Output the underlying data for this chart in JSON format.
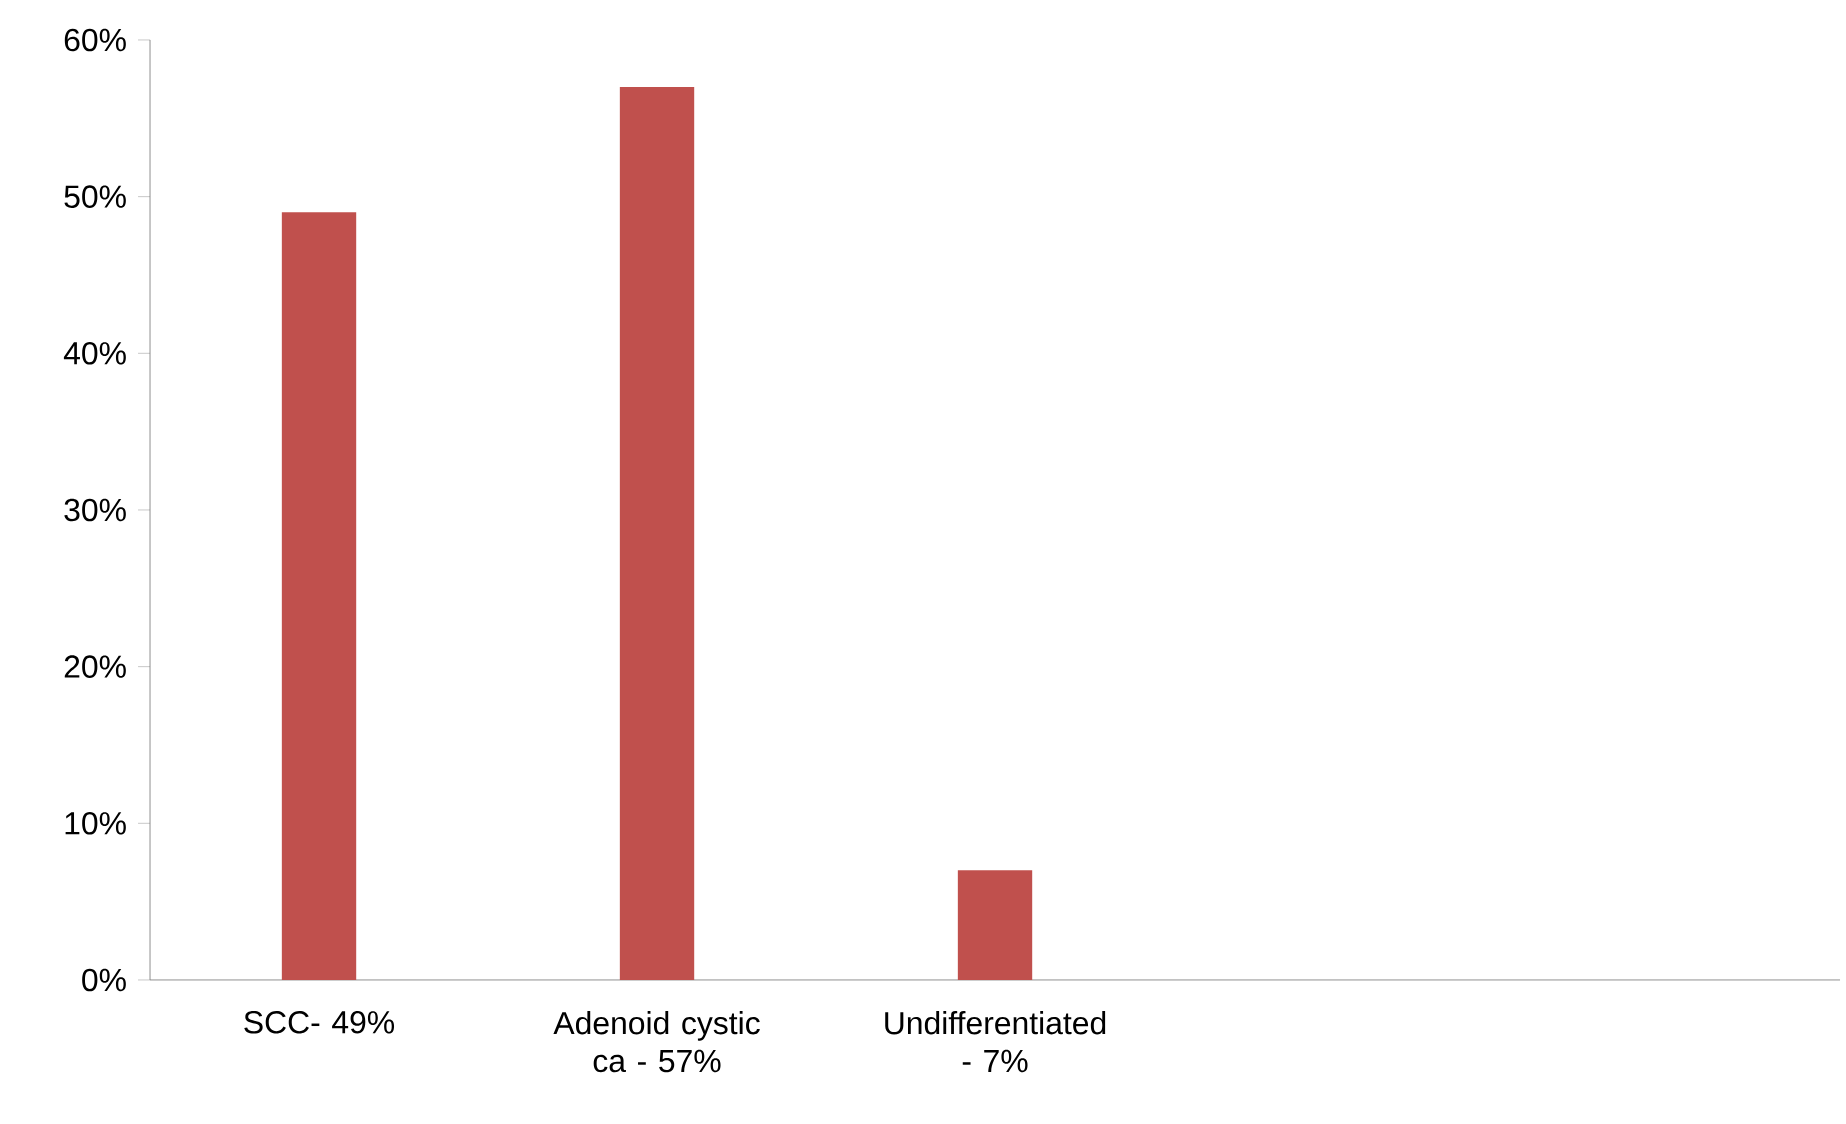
{
  "chart_data": {
    "type": "bar",
    "categories": [
      "SCC- 49%",
      "Adenoid cystic ca - 57%",
      "Undifferentiated - 7%",
      null,
      null
    ],
    "values": [
      49,
      57,
      7,
      null,
      null
    ],
    "color": "#c0504d",
    "ylim": [
      0,
      60
    ],
    "yticks": [
      {
        "value": 0,
        "label": "0%"
      },
      {
        "value": 10,
        "label": "10%"
      },
      {
        "value": 20,
        "label": "20%"
      },
      {
        "value": 30,
        "label": "30%"
      },
      {
        "value": 40,
        "label": "40%"
      },
      {
        "value": 50,
        "label": "50%"
      },
      {
        "value": 60,
        "label": "60%"
      }
    ],
    "grid": false
  }
}
